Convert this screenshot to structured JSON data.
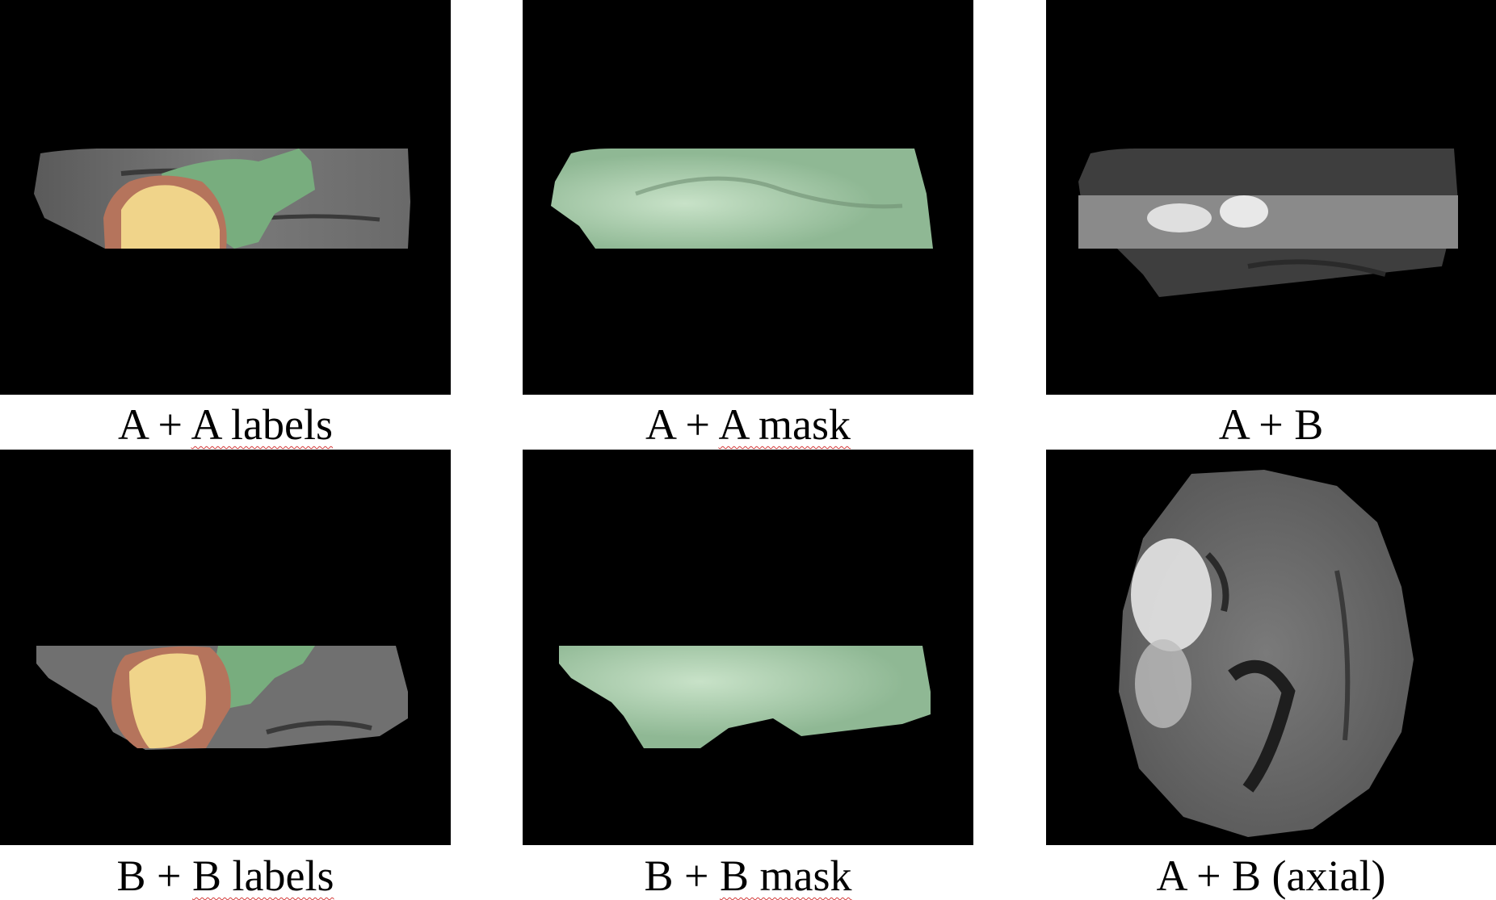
{
  "figure": {
    "panels": [
      {
        "id": "a-a-labels",
        "caption_pre": "A + ",
        "caption_sq": "A  labels",
        "caption_post": ""
      },
      {
        "id": "a-a-mask",
        "caption_pre": "A + ",
        "caption_sq": "A  mask",
        "caption_post": ""
      },
      {
        "id": "a-b",
        "caption_pre": "A + B",
        "caption_sq": "",
        "caption_post": ""
      },
      {
        "id": "b-b-labels",
        "caption_pre": "B + ",
        "caption_sq": "B  labels",
        "caption_post": ""
      },
      {
        "id": "b-b-mask",
        "caption_pre": "B + ",
        "caption_sq": "B  mask",
        "caption_post": ""
      },
      {
        "id": "a-b-axial",
        "caption_pre": "A + B (axial)",
        "caption_sq": "",
        "caption_post": ""
      }
    ],
    "colors": {
      "background": "#000000",
      "tissue": "#6f6f6f",
      "label_core": "#f0d48a",
      "label_rim": "#b5745c",
      "label_edema": "#78ad7e",
      "mask_green": "#9cc39f"
    }
  }
}
